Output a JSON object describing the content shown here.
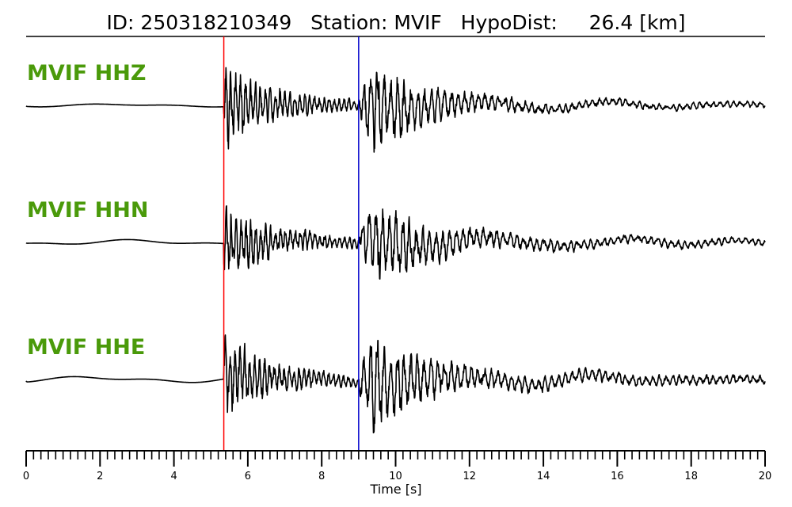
{
  "chart_data": {
    "type": "line",
    "title": "ID: 250318210349   Station: MVIF   HypoDist:     26.4 [km]",
    "xlabel": "Time [s]",
    "ylabel": "",
    "xlim": [
      0,
      20
    ],
    "x_ticks": [
      "0",
      "2",
      "4",
      "6",
      "8",
      "10",
      "12",
      "14",
      "16",
      "18",
      "20"
    ],
    "minor_tick_step": 0.2,
    "grid": false,
    "label_color": "#4a9a0a",
    "trace_color": "#000000",
    "picks": [
      {
        "phase": "P",
        "time": 5.35,
        "color": "#ff0000"
      },
      {
        "phase": "S",
        "time": 9.0,
        "color": "#0000cc"
      }
    ],
    "series": [
      {
        "name": "MVIF HHZ",
        "seed": 11,
        "preNoise": 0.02,
        "pAmp": 1.0,
        "sAmp": 1.15,
        "coda": 0.1
      },
      {
        "name": "MVIF HHN",
        "seed": 23,
        "preNoise": 0.035,
        "pAmp": 0.85,
        "sAmp": 1.05,
        "coda": 0.13
      },
      {
        "name": "MVIF HHE",
        "seed": 37,
        "preNoise": 0.04,
        "pAmp": 0.95,
        "sAmp": 1.1,
        "coda": 0.17
      }
    ]
  }
}
